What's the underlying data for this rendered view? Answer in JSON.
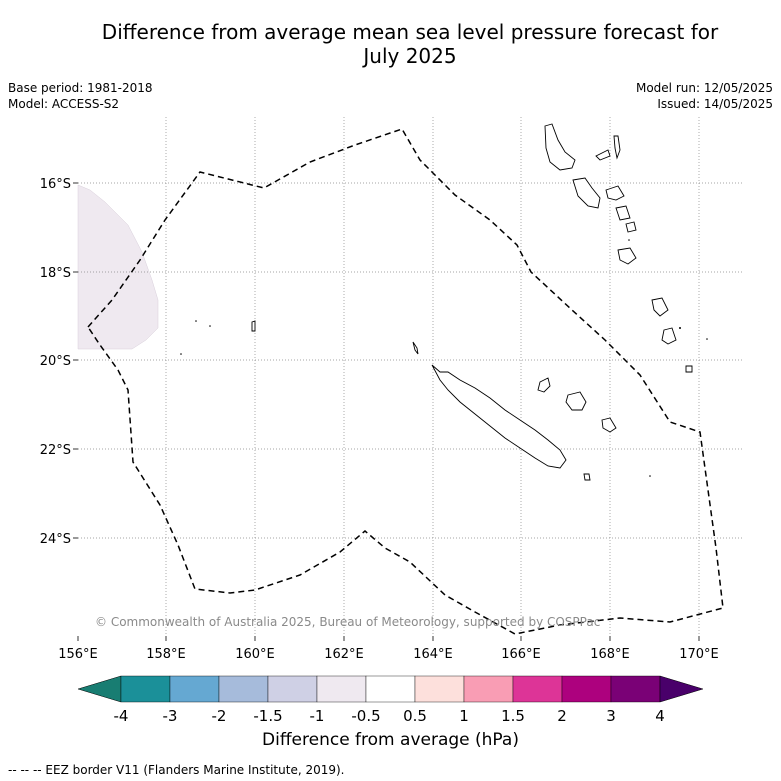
{
  "title": "Difference from average mean sea level pressure forecast for July 2025",
  "title_line1": "Difference from average mean sea level pressure forecast for",
  "title_line2": "July 2025",
  "meta_left": [
    "Base period: 1981-2018",
    "Model: ACCESS-S2"
  ],
  "meta_right": [
    "Model run: 12/05/2025",
    "Issued: 14/05/2025"
  ],
  "map": {
    "lon_ticks": [
      "156°E",
      "158°E",
      "160°E",
      "162°E",
      "164°E",
      "166°E",
      "168°E",
      "170°E"
    ],
    "lat_ticks": [
      "16°S",
      "18°S",
      "20°S",
      "22°S",
      "24°S"
    ],
    "copyright": "© Commonwealth of Australia 2025, Bureau of Meteorology, supported by COSPPac",
    "anomaly_region_color": "#efe9f0",
    "eez_color": "#000000"
  },
  "colorbar": {
    "tick_labels": [
      "-4",
      "-3",
      "-2",
      "-1.5",
      "-1",
      "-0.5",
      "0.5",
      "1",
      "1.5",
      "2",
      "3",
      "4"
    ],
    "colors": [
      "#187d72",
      "#1b9099",
      "#65a8d2",
      "#a6bbdb",
      "#cfd0e5",
      "#efe9f0",
      "#ffffff",
      "#fde0dc",
      "#f99db4",
      "#dd3497",
      "#ad017e",
      "#7a0176",
      "#49006a"
    ],
    "label": "Difference from average (hPa)"
  },
  "footnote": "--  --  -- EEZ border V11 (Flanders Marine Institute, 2019)."
}
